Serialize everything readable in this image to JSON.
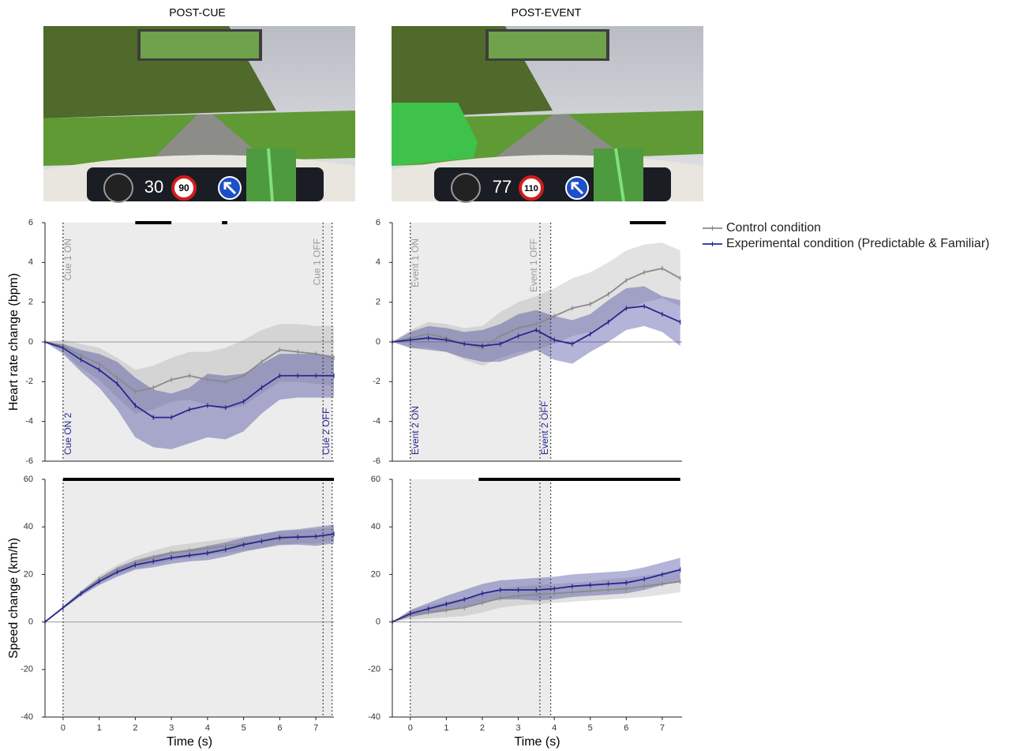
{
  "columns": [
    {
      "title": "POST-CUE",
      "dashboard": {
        "speed": 30,
        "limit": 90
      }
    },
    {
      "title": "POST-EVENT",
      "dashboard": {
        "speed": 77,
        "limit": 110
      }
    }
  ],
  "chart_data": [
    {
      "type": "line",
      "ylabel": "Heart rate change (bpm)",
      "x": [
        -0.5,
        0,
        0.5,
        1,
        1.5,
        2,
        2.5,
        3,
        3.5,
        4,
        4.5,
        5,
        5.5,
        6,
        6.5,
        7,
        7.5
      ],
      "xlim": [
        -0.5,
        7.5
      ],
      "ylim": [
        -6,
        6
      ],
      "yticks": [
        -6,
        -4,
        -2,
        0,
        2,
        4,
        6
      ],
      "shade": [
        0,
        7.45
      ],
      "significance": [
        [
          2,
          3
        ],
        [
          4.4,
          4.55
        ]
      ],
      "markers": [
        {
          "x": 0,
          "label": "Cue 1 ON",
          "series": 0
        },
        {
          "x": 7.2,
          "label": "Cue 1 OFF",
          "series": 0
        },
        {
          "x": 0,
          "label": "Cue ON 2",
          "series": 1
        },
        {
          "x": 7.45,
          "label": "Cue 2 OFF",
          "series": 1
        }
      ],
      "series": [
        {
          "name": "Control condition",
          "color": "#8a8a8a",
          "values": [
            0,
            -0.2,
            -0.7,
            -1.1,
            -1.8,
            -2.5,
            -2.3,
            -1.9,
            -1.7,
            -1.9,
            -2.0,
            -1.7,
            -1.0,
            -0.4,
            -0.5,
            -0.6,
            -0.8
          ],
          "upper": [
            0,
            0.1,
            -0.1,
            -0.3,
            -0.8,
            -1.4,
            -1.2,
            -0.8,
            -0.5,
            -0.5,
            -0.3,
            0.1,
            0.6,
            0.9,
            0.9,
            0.8,
            0.8
          ],
          "lower": [
            0,
            -0.5,
            -1.3,
            -1.9,
            -2.8,
            -3.6,
            -3.4,
            -3.0,
            -2.9,
            -3.2,
            -3.4,
            -3.2,
            -2.6,
            -2.0,
            -2.0,
            -2.1,
            -2.2
          ]
        },
        {
          "name": "Experimental condition (Predictable & Familiar)",
          "color": "#27278f",
          "values": [
            0,
            -0.3,
            -0.9,
            -1.4,
            -2.1,
            -3.2,
            -3.8,
            -3.8,
            -3.4,
            -3.2,
            -3.3,
            -3.0,
            -2.3,
            -1.7,
            -1.7,
            -1.7,
            -1.7
          ],
          "upper": [
            0,
            -0.1,
            -0.4,
            -0.6,
            -1.0,
            -1.8,
            -2.4,
            -2.6,
            -2.3,
            -1.6,
            -1.7,
            -1.6,
            -1.1,
            -0.6,
            -0.6,
            -0.6,
            -0.7
          ],
          "lower": [
            0,
            -0.6,
            -1.5,
            -2.3,
            -3.4,
            -4.8,
            -5.3,
            -5.4,
            -5.1,
            -4.8,
            -4.9,
            -4.5,
            -3.6,
            -2.9,
            -2.8,
            -2.8,
            -2.8
          ]
        }
      ]
    },
    {
      "type": "line",
      "x": [
        -0.5,
        0,
        0.5,
        1,
        1.5,
        2,
        2.5,
        3,
        3.5,
        4,
        4.5,
        5,
        5.5,
        6,
        6.5,
        7,
        7.5
      ],
      "xlim": [
        -0.5,
        7.55
      ],
      "ylim": [
        -6,
        6
      ],
      "yticks": [
        -6,
        -4,
        -2,
        0,
        2,
        4,
        6
      ],
      "shade": [
        0,
        3.9
      ],
      "significance": [
        [
          6.1,
          7.1
        ]
      ],
      "markers": [
        {
          "x": 0,
          "label": "Event 1 ON",
          "series": 0
        },
        {
          "x": 3.6,
          "label": "Event 1 OFF",
          "series": 0
        },
        {
          "x": 0,
          "label": "Event 2 ON",
          "series": 1
        },
        {
          "x": 3.9,
          "label": "Event 2 OFF",
          "series": 1
        }
      ],
      "series": [
        {
          "color": "#8a8a8a",
          "values": [
            0,
            0.2,
            0.4,
            0.2,
            -0.1,
            -0.3,
            0.3,
            0.7,
            0.9,
            1.3,
            1.7,
            1.9,
            2.4,
            3.1,
            3.5,
            3.7,
            3.2
          ],
          "upper": [
            0,
            0.6,
            1.0,
            0.9,
            0.7,
            0.8,
            1.5,
            2.0,
            2.3,
            2.7,
            3.2,
            3.5,
            4.0,
            4.6,
            4.9,
            5.0,
            4.6
          ],
          "lower": [
            0,
            -0.3,
            -0.3,
            -0.5,
            -0.9,
            -1.2,
            -0.8,
            -0.5,
            -0.4,
            -0.1,
            0.3,
            0.5,
            1.0,
            1.6,
            2.0,
            2.2,
            1.8
          ]
        },
        {
          "color": "#27278f",
          "values": [
            0,
            0.1,
            0.2,
            0.1,
            -0.1,
            -0.2,
            -0.1,
            0.3,
            0.6,
            0.1,
            -0.1,
            0.4,
            1.0,
            1.7,
            1.8,
            1.4,
            1.0
          ],
          "upper": [
            0,
            0.5,
            0.8,
            0.7,
            0.5,
            0.6,
            0.9,
            1.4,
            1.6,
            1.3,
            1.1,
            1.4,
            2.1,
            2.7,
            2.8,
            2.3,
            2.1
          ],
          "lower": [
            0,
            -0.3,
            -0.4,
            -0.5,
            -0.8,
            -1.0,
            -1.0,
            -0.7,
            -0.4,
            -0.9,
            -1.1,
            -0.5,
            0.0,
            0.6,
            0.8,
            0.5,
            -0.2
          ]
        }
      ]
    },
    {
      "type": "line",
      "ylabel": "Speed change (km/h)",
      "xlabel": "Time (s)",
      "x": [
        -0.5,
        0,
        0.5,
        1,
        1.5,
        2,
        2.5,
        3,
        3.5,
        4,
        4.5,
        5,
        5.5,
        6,
        6.5,
        7,
        7.5
      ],
      "xlim": [
        -0.5,
        7.5
      ],
      "ylim": [
        -40,
        60
      ],
      "yticks": [
        -40,
        -20,
        0,
        20,
        40,
        60
      ],
      "xticks": [
        0,
        1,
        2,
        3,
        4,
        5,
        6,
        7
      ],
      "shade": [
        0,
        7.45
      ],
      "significance": [
        [
          0,
          7.5
        ]
      ],
      "markers": [
        {
          "x": 0
        },
        {
          "x": 7.2
        },
        {
          "x": 7.45
        }
      ],
      "series": [
        {
          "color": "#8a8a8a",
          "values": [
            0,
            6,
            12,
            18,
            22,
            25,
            27,
            29,
            30,
            31,
            32,
            33,
            34,
            35,
            36,
            36,
            37
          ],
          "upper": [
            0,
            6.5,
            13,
            19.5,
            24,
            27.5,
            30,
            32,
            33,
            34,
            35,
            36,
            37,
            38,
            38.5,
            39,
            40
          ],
          "lower": [
            0,
            5.5,
            11,
            16.5,
            20,
            22.5,
            24,
            26,
            27,
            28,
            29,
            30,
            31,
            32,
            33,
            33,
            34
          ]
        },
        {
          "color": "#27278f",
          "values": [
            0,
            6,
            12,
            17,
            21,
            24,
            25.5,
            27,
            28,
            29,
            30.5,
            32.5,
            34,
            35.5,
            35.7,
            36,
            37
          ],
          "upper": [
            0,
            6.5,
            13,
            18.5,
            23,
            26,
            28,
            29.5,
            30.5,
            32,
            33.5,
            35.5,
            37,
            38.5,
            39,
            40,
            41
          ],
          "lower": [
            0,
            5.5,
            11,
            15.5,
            19,
            22,
            23,
            24.5,
            25.5,
            26,
            27.5,
            29.5,
            31,
            32.5,
            32.5,
            32,
            33
          ]
        }
      ]
    },
    {
      "type": "line",
      "xlabel": "Time (s)",
      "x": [
        -0.5,
        0,
        0.5,
        1,
        1.5,
        2,
        2.5,
        3,
        3.5,
        4,
        4.5,
        5,
        5.5,
        6,
        6.5,
        7,
        7.5
      ],
      "xlim": [
        -0.5,
        7.55
      ],
      "ylim": [
        -40,
        60
      ],
      "yticks": [
        -40,
        -20,
        0,
        20,
        40,
        60
      ],
      "xticks": [
        0,
        1,
        2,
        3,
        4,
        5,
        6,
        7
      ],
      "shade": [
        0,
        3.9
      ],
      "significance": [
        [
          1.9,
          7.5
        ]
      ],
      "markers": [
        {
          "x": 0
        },
        {
          "x": 3.6
        },
        {
          "x": 3.9
        }
      ],
      "series": [
        {
          "color": "#8a8a8a",
          "values": [
            0,
            3,
            4,
            5,
            6,
            8,
            10,
            11,
            11.5,
            12,
            12.5,
            13,
            13.5,
            14,
            15,
            16,
            17
          ],
          "upper": [
            0,
            5,
            7,
            8.5,
            10,
            12,
            14,
            15,
            15.5,
            16,
            16.5,
            17,
            18,
            18.5,
            19.5,
            20.5,
            21.5
          ],
          "lower": [
            0,
            1,
            1.5,
            2,
            2.5,
            4,
            6,
            7,
            7.5,
            8,
            8.5,
            9,
            9.5,
            10,
            10.5,
            11.5,
            12.5
          ]
        },
        {
          "color": "#27278f",
          "values": [
            0,
            3.5,
            5.5,
            7.5,
            9.5,
            12,
            13.5,
            13.5,
            13.5,
            14,
            15,
            15.5,
            16,
            16.5,
            18,
            20,
            22
          ],
          "upper": [
            0,
            5,
            8,
            11,
            13.5,
            16,
            17.5,
            18,
            18.5,
            19,
            20,
            20.5,
            21,
            21.5,
            23,
            25,
            27
          ],
          "lower": [
            0,
            2,
            3.5,
            4.5,
            6,
            8,
            9.5,
            9.5,
            9,
            9.5,
            10.5,
            11,
            11.5,
            12,
            13.5,
            15.5,
            17
          ]
        }
      ]
    }
  ]
}
